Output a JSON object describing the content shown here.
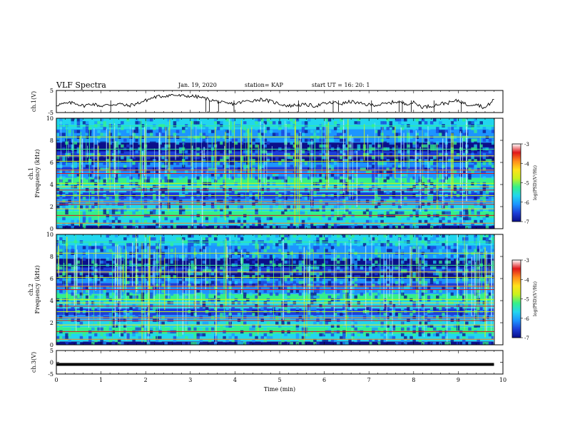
{
  "header": {
    "title": "VLF Spectra",
    "date": "Jan. 19, 2020",
    "station": "station= KAP",
    "start_ut": "start  UT =   16: 20: 1"
  },
  "colors": {
    "background": "#ffffff",
    "axis": "#000000",
    "colormap": [
      "#0b0f8a",
      "#1c3fd9",
      "#1c95ff",
      "#22d6ee",
      "#35f08a",
      "#c8f21e",
      "#ffe21a",
      "#ff8c1a",
      "#e0161a",
      "#ffffff"
    ]
  },
  "chart_data": [
    {
      "type": "line",
      "panel": "ch1-waveform",
      "ylabel": "ch.1(V)",
      "ylim": [
        -5,
        5
      ],
      "yticks": [
        "5",
        "-5"
      ],
      "xlim": [
        0,
        10
      ],
      "x_unit": "min",
      "series": [
        {
          "x": [
            0.0,
            0.2,
            0.4,
            0.6,
            0.8,
            1.0,
            1.2,
            1.4,
            1.6,
            1.8,
            2.0,
            2.2,
            2.4,
            2.6,
            2.8,
            3.0,
            3.2,
            3.4,
            3.6,
            3.8,
            4.0,
            4.2,
            4.4,
            4.6,
            4.8,
            5.0,
            5.2,
            5.4,
            5.6,
            5.8,
            6.0,
            6.2,
            6.4,
            6.6,
            6.8,
            7.0,
            7.2,
            7.4,
            7.6,
            7.8,
            8.0,
            8.2,
            8.4,
            8.6,
            8.8,
            9.0,
            9.2,
            9.4,
            9.6,
            9.8
          ],
          "values": [
            -1.5,
            -1.0,
            -0.5,
            -2.0,
            -1.0,
            -2.0,
            -1.5,
            -1.0,
            -2.0,
            -1.0,
            0.5,
            2.0,
            2.5,
            3.0,
            2.5,
            2.5,
            2.0,
            1.0,
            0.0,
            -1.0,
            -1.0,
            0.0,
            0.5,
            1.0,
            0.0,
            -1.0,
            -2.0,
            -1.5,
            -1.5,
            -2.0,
            -1.0,
            -0.5,
            -1.0,
            0.0,
            -1.0,
            -1.5,
            -1.5,
            -1.0,
            0.0,
            -1.0,
            -0.5,
            -2.5,
            -2.0,
            -1.0,
            -0.5,
            0.5,
            -1.5,
            -1.0,
            -3.0,
            1.0
          ]
        }
      ]
    },
    {
      "type": "heatmap",
      "panel": "ch1-spectrogram",
      "ylabel": "ch.1\nFrequency (kHz)",
      "ylim": [
        0,
        10
      ],
      "yticks": [
        "0",
        "2",
        "4",
        "6",
        "8",
        "10"
      ],
      "xlim": [
        0,
        10
      ],
      "colorbar": {
        "label": "log(PSD)(V²/Hz)",
        "range": [
          -7,
          -3
        ],
        "ticks": [
          "-3",
          "-4",
          "-5",
          "-6",
          "-7"
        ]
      }
    },
    {
      "type": "heatmap",
      "panel": "ch2-spectrogram",
      "ylabel": "ch.2\nFrequency (kHz)",
      "ylim": [
        0,
        10
      ],
      "yticks": [
        "0",
        "2",
        "4",
        "6",
        "8",
        "10"
      ],
      "xlim": [
        0,
        10
      ],
      "colorbar": {
        "label": "log(PSD)(V²/Hz)",
        "range": [
          -7,
          -3
        ],
        "ticks": [
          "-3",
          "-4",
          "-5",
          "-6",
          "-7"
        ]
      }
    },
    {
      "type": "line",
      "panel": "ch3-waveform",
      "ylabel": "ch.3(V)",
      "ylim": [
        -5,
        5
      ],
      "yticks": [
        "5",
        "0",
        "-5"
      ],
      "xlim": [
        0,
        10
      ],
      "series": [
        {
          "x": [
            0,
            9.8
          ],
          "values": [
            0,
            0
          ]
        }
      ]
    }
  ],
  "xaxis": {
    "label": "Time  (min)",
    "ticks": [
      "0",
      "1",
      "2",
      "3",
      "4",
      "5",
      "6",
      "7",
      "8",
      "9",
      "10"
    ]
  }
}
